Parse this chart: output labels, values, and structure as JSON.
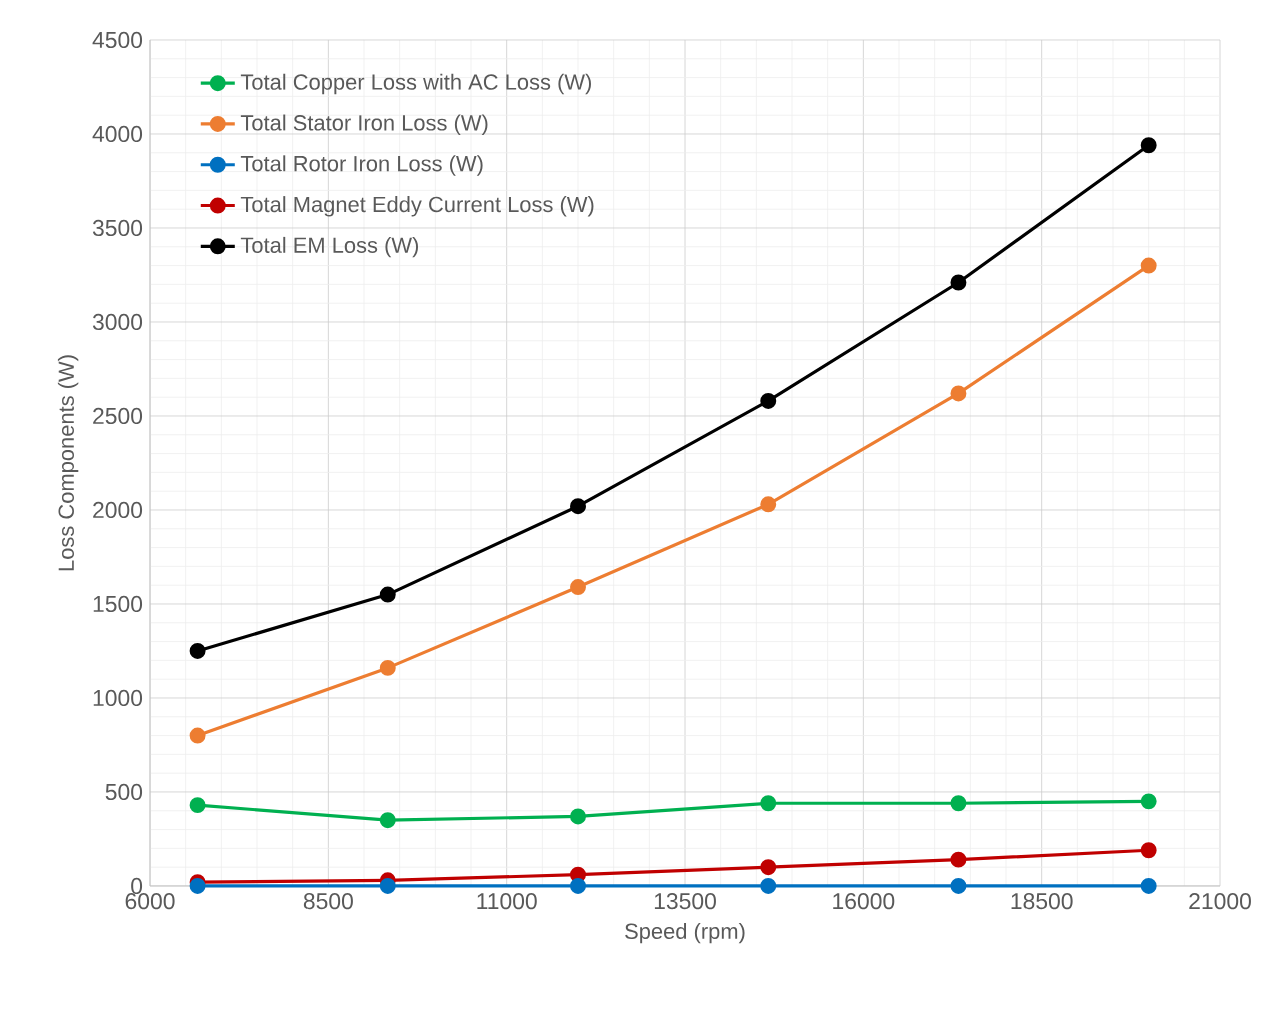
{
  "chart_data": {
    "type": "line",
    "xlabel": "Speed (rpm)",
    "ylabel": "Loss Components (W)",
    "x": [
      6667,
      9333,
      12000,
      14667,
      17333,
      20000
    ],
    "series": [
      {
        "name": "Total Copper Loss with AC Loss (W)",
        "color": "#00b050",
        "values": [
          430,
          350,
          370,
          440,
          440,
          450
        ]
      },
      {
        "name": "Total Stator Iron Loss (W)",
        "color": "#ed7d31",
        "values": [
          800,
          1160,
          1590,
          2030,
          2620,
          3300
        ]
      },
      {
        "name": "Total Rotor Iron Loss (W)",
        "color": "#0070c0",
        "values": [
          0,
          0,
          0,
          0,
          0,
          0
        ]
      },
      {
        "name": "Total Magnet Eddy Current Loss (W)",
        "color": "#c00000",
        "values": [
          20,
          30,
          60,
          100,
          140,
          190
        ]
      },
      {
        "name": "Total EM Loss (W)",
        "color": "#000000",
        "values": [
          1250,
          1550,
          2020,
          2580,
          3210,
          3940
        ]
      }
    ],
    "xlim": [
      6000,
      21000
    ],
    "xticks": [
      6000,
      8500,
      11000,
      13500,
      16000,
      18500,
      21000
    ],
    "ylim": [
      0,
      4500
    ],
    "yticks": [
      0,
      500,
      1000,
      1500,
      2000,
      2500,
      3000,
      3500,
      4000,
      4500
    ],
    "grid": true,
    "legend": "top left",
    "marker": "circle",
    "line_style": "solid"
  }
}
